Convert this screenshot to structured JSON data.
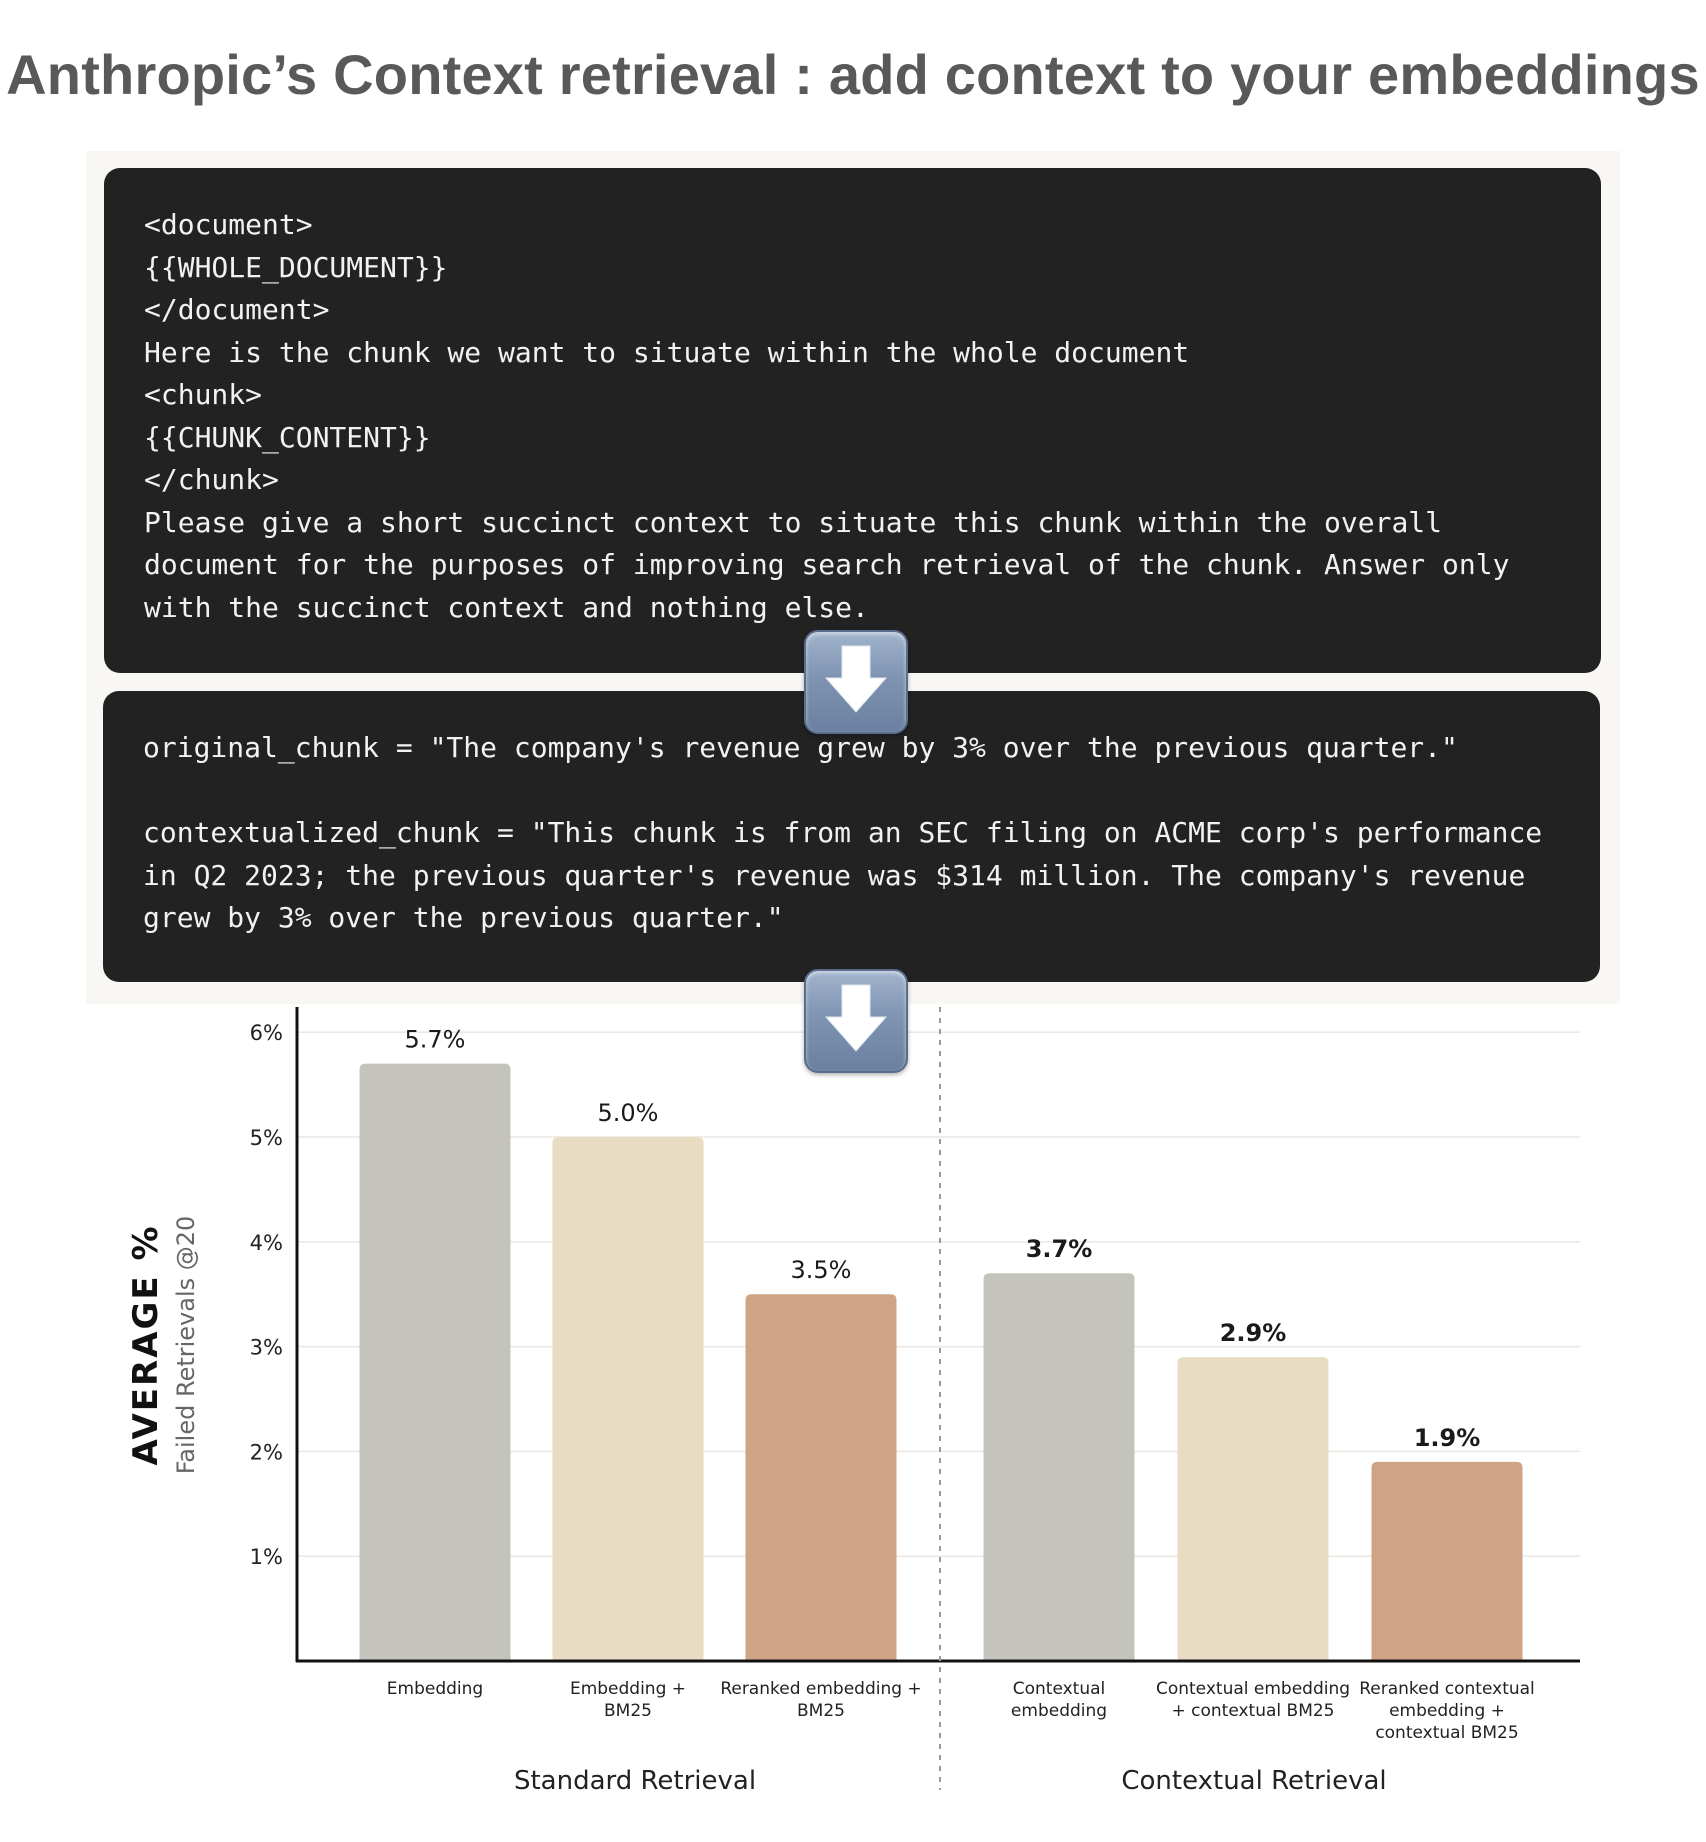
{
  "title": "Anthropic’s Context retrieval : add context to your embeddings",
  "prompt_box": {
    "lines": [
      "<document>",
      "{{WHOLE_DOCUMENT}}",
      "</document>",
      "Here is the chunk we want to situate within the whole document",
      "<chunk>",
      "{{CHUNK_CONTENT}}",
      "</chunk>",
      "Please give a short succinct context to situate this chunk within the overall",
      "document for the purposes of improving search retrieval of the chunk. Answer only",
      "with the succinct context and nothing else."
    ]
  },
  "example_box": {
    "lines": [
      "original_chunk = \"The company's revenue grew by 3% over the previous quarter.\"",
      "",
      "contextualized_chunk = \"This chunk is from an SEC filing on ACME corp's performance",
      "in Q2 2023; the previous quarter's revenue was $314 million. The company's revenue",
      "grew by 3% over the previous quarter.\""
    ]
  },
  "arrows": [
    "down-arrow-icon",
    "down-arrow-icon"
  ],
  "colors": {
    "gray": "#c4c4bc",
    "cream": "#e8ddc2",
    "tan": "#cfa484",
    "code_bg": "#222222"
  },
  "chart_data": {
    "type": "bar",
    "ylabel": "AVERAGE %",
    "ylabel_sub": "Failed Retrievals @20",
    "ylim": [
      0,
      6.2
    ],
    "yticks": [
      1,
      2,
      3,
      4,
      5,
      6
    ],
    "ytick_labels": [
      "1%",
      "2%",
      "3%",
      "4%",
      "5%",
      "6%"
    ],
    "grid": true,
    "groups": [
      {
        "name": "Standard Retrieval",
        "bars": [
          {
            "label": [
              "Embedding"
            ],
            "value": 5.7,
            "value_label": "5.7%",
            "color": "#c4c4bc",
            "bold": false
          },
          {
            "label": [
              "Embedding +",
              "BM25"
            ],
            "value": 5.0,
            "value_label": "5.0%",
            "color": "#e8ddc2",
            "bold": false
          },
          {
            "label": [
              "Reranked embedding +",
              "BM25"
            ],
            "value": 3.5,
            "value_label": "3.5%",
            "color": "#cfa484",
            "bold": false
          }
        ]
      },
      {
        "name": "Contextual Retrieval",
        "bars": [
          {
            "label": [
              "Contextual",
              "embedding"
            ],
            "value": 3.7,
            "value_label": "3.7%",
            "color": "#c4c4bc",
            "bold": true
          },
          {
            "label": [
              "Contextual embedding",
              "+ contextual BM25"
            ],
            "value": 2.9,
            "value_label": "2.9%",
            "color": "#e8ddc2",
            "bold": true
          },
          {
            "label": [
              "Reranked contextual",
              "embedding +",
              "contextual BM25"
            ],
            "value": 1.9,
            "value_label": "1.9%",
            "color": "#cfa484",
            "bold": true
          }
        ]
      }
    ]
  }
}
